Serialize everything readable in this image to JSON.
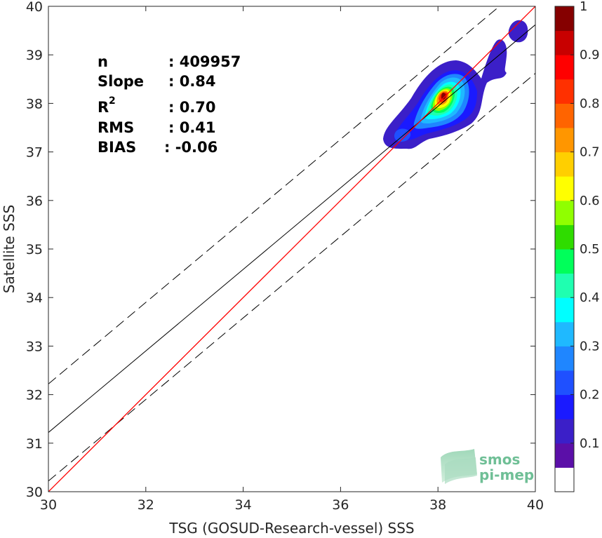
{
  "chart_data": {
    "type": "heatmap",
    "xlabel": "TSG (GOSUD-Research-vessel) SSS",
    "ylabel": "Satellite SSS",
    "xlim": [
      30,
      40
    ],
    "ylim": [
      30,
      40
    ],
    "x_ticks": [
      "30",
      "32",
      "34",
      "36",
      "38",
      "40"
    ],
    "y_ticks": [
      "30",
      "31",
      "32",
      "33",
      "34",
      "35",
      "36",
      "37",
      "38",
      "39",
      "40"
    ],
    "stats": [
      {
        "label": "n",
        "value": ": 409957"
      },
      {
        "label": "Slope",
        "value": ": 0.84"
      },
      {
        "label": "R",
        "sup": "2",
        "value": ": 0.70"
      },
      {
        "label": "RMS",
        "value": ": 0.41"
      },
      {
        "label": "BIAS",
        "value": ": -0.06"
      }
    ],
    "identity_line": {
      "color": "#ff0000",
      "from": [
        30,
        30
      ],
      "to": [
        40,
        40
      ]
    },
    "fit_line": {
      "color": "#000000",
      "slope": 0.84,
      "intercept": 6.02
    },
    "error_band_offset": 1.0,
    "density_peak": {
      "x": 38.2,
      "y": 38.2
    },
    "colorbar": {
      "range": [
        0,
        1
      ],
      "ticks": [
        "0.1",
        "0.2",
        "0.3",
        "0.4",
        "0.5",
        "0.6",
        "0.7",
        "0.8",
        "0.9",
        "1"
      ],
      "colors": [
        "#ffffff",
        "#5b0fa8",
        "#3b1fc8",
        "#1a1aff",
        "#1f50ff",
        "#1f86ff",
        "#1fb9ff",
        "#00ffff",
        "#1fffb0",
        "#00ff5a",
        "#2fdc00",
        "#90ff00",
        "#ffff00",
        "#ffcf00",
        "#ff9600",
        "#ff6400",
        "#ff3000",
        "#ff0000",
        "#c80000",
        "#850000"
      ]
    }
  },
  "logo": {
    "line1": "smos",
    "line2": "pi-mep"
  }
}
